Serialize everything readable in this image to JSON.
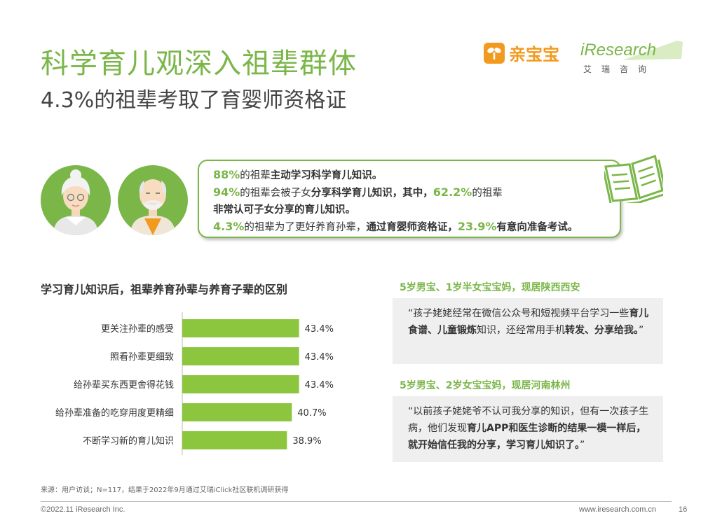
{
  "header": {
    "title": "科学育儿观深入祖辈群体",
    "subtitle": "4.3%的祖辈考取了育婴师资格证"
  },
  "logos": {
    "brand1": "亲宝宝",
    "brand2": "iResearch",
    "brand2_sub": "艾瑞咨询"
  },
  "summary": {
    "l1_pct": "88%",
    "l1_a": "的祖辈",
    "l1_b": "主动学习科学育儿知识",
    "l1_c": "。",
    "l2_pct": "94%",
    "l2_a": "的祖辈会被子女",
    "l2_b": "分享科学育儿知识，其中，",
    "l2_pct2": "62.2%",
    "l2_c": "的祖辈",
    "l3": "非常认可子女分享的育儿知识。",
    "l4_pct": "4.3%",
    "l4_a": "的祖辈为了更好养育孙辈，",
    "l4_b": "通过育婴师资格证，",
    "l4_pct2": "23.9%",
    "l4_c": "有意向准备考试。"
  },
  "chart_title": "学习育儿知识后，祖辈养育孙辈与养育子辈的区别",
  "chart_data": {
    "type": "bar",
    "orientation": "horizontal",
    "categories": [
      "更关注孙辈的感受",
      "照看孙辈更细致",
      "给孙辈买东西更舍得花钱",
      "给孙辈准备的吃穿用度更精细",
      "不断学习新的育儿知识"
    ],
    "values": [
      43.4,
      43.4,
      43.4,
      40.7,
      38.9
    ],
    "value_labels": [
      "43.4%",
      "43.4%",
      "43.4%",
      "40.7%",
      "38.9%"
    ],
    "unit": "%",
    "xlim": [
      0,
      50
    ],
    "grid": false,
    "legend": "none",
    "color": "#8cc63f"
  },
  "quotes": [
    {
      "title": "5岁男宝、1岁半女宝宝妈，现居陕西西安",
      "p1": "“孩子姥姥经常在微信公众号和短视频平台学习一些",
      "b1": "育儿食谱、儿童锻炼",
      "p2": "知识，还经常用手机",
      "b2": "转发、分享给我。",
      "p3": "”"
    },
    {
      "title": "5岁男宝、2岁女宝宝妈，现居河南林州",
      "p1": "“以前孩子姥姥爷不认可我分享的知识，但有一次孩子生病，他们发现",
      "b1": "育儿APP和医生诊断的结果一模一样后，就开始信任我的分享，学习育儿知识了。",
      "p2": "”"
    }
  ],
  "footer": {
    "source": "来源：用户访谈；N=117，结果于2022年9月通过艾瑞iClick社区联机调研获得",
    "copyright": "©2022.11 iResearch Inc.",
    "website": "www.iresearch.com.cn",
    "page": "16"
  },
  "colors": {
    "accent": "#7ab648",
    "bar": "#8cc63f",
    "brand_orange": "#f29a1f",
    "quote_bg": "#efefef"
  }
}
